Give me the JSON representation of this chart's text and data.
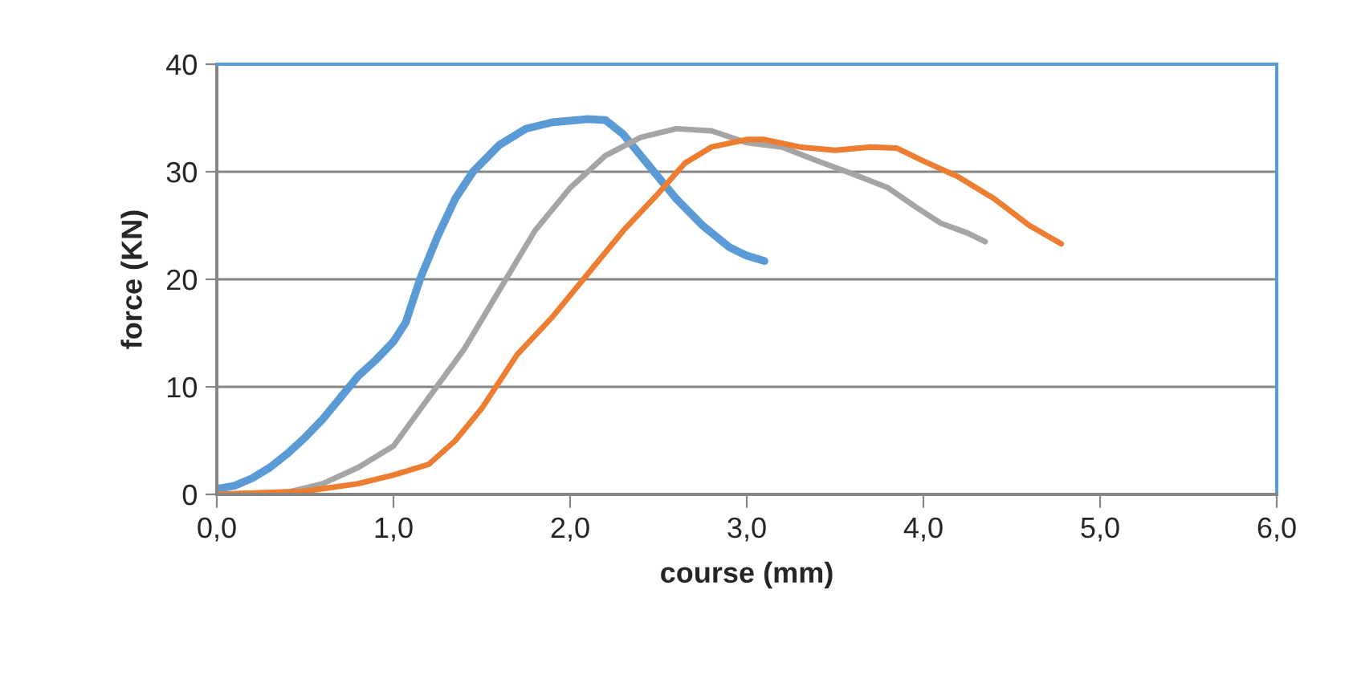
{
  "chart_data": {
    "type": "line",
    "xlabel": "course (mm)",
    "ylabel": "force (KN)",
    "xlim": [
      0,
      6
    ],
    "ylim": [
      0,
      40
    ],
    "xticks": [
      {
        "value": 0,
        "label": "0,0"
      },
      {
        "value": 1,
        "label": "1,0"
      },
      {
        "value": 2,
        "label": "2,0"
      },
      {
        "value": 3,
        "label": "3,0"
      },
      {
        "value": 4,
        "label": "4,0"
      },
      {
        "value": 5,
        "label": "5,0"
      },
      {
        "value": 6,
        "label": "6,0"
      }
    ],
    "yticks": [
      0,
      10,
      20,
      30,
      40
    ],
    "grid": "y",
    "marker": "none",
    "line_style": "solid",
    "series": [
      {
        "color": "#5b9bd5",
        "x": [
          0,
          0.1,
          0.2,
          0.3,
          0.4,
          0.5,
          0.6,
          0.7,
          0.8,
          0.9,
          1.0,
          1.07,
          1.15,
          1.25,
          1.35,
          1.45,
          1.6,
          1.75,
          1.9,
          2.1,
          2.2,
          2.3,
          2.45,
          2.6,
          2.75,
          2.9,
          3.0,
          3.1
        ],
        "values": [
          0.5,
          0.8,
          1.5,
          2.5,
          3.8,
          5.3,
          7,
          9,
          11,
          12.5,
          14.2,
          16,
          20,
          24,
          27.5,
          30,
          32.5,
          34,
          34.6,
          34.9,
          34.8,
          33.5,
          30.5,
          27.5,
          25,
          23,
          22.2,
          21.7
        ]
      },
      {
        "color": "#a5a5a5",
        "x": [
          0,
          0.4,
          0.6,
          0.8,
          1.0,
          1.2,
          1.4,
          1.6,
          1.8,
          2.0,
          2.2,
          2.4,
          2.6,
          2.8,
          3.0,
          3.2,
          3.4,
          3.6,
          3.8,
          3.95,
          4.1,
          4.25,
          4.35
        ],
        "values": [
          0,
          0.2,
          1,
          2.5,
          4.5,
          9,
          13.5,
          19,
          24.5,
          28.5,
          31.5,
          33.2,
          34,
          33.8,
          32.7,
          32.3,
          31,
          29.8,
          28.5,
          26.8,
          25.2,
          24.3,
          23.5
        ]
      },
      {
        "color": "#ed7d31",
        "x": [
          0,
          0.5,
          0.8,
          1.0,
          1.2,
          1.35,
          1.5,
          1.7,
          1.9,
          2.1,
          2.3,
          2.5,
          2.65,
          2.8,
          3.0,
          3.1,
          3.3,
          3.5,
          3.7,
          3.85,
          4.0,
          4.2,
          4.4,
          4.6,
          4.78
        ],
        "values": [
          0,
          0.3,
          1,
          1.8,
          2.8,
          5,
          8,
          13,
          16.5,
          20.5,
          24.5,
          28,
          30.8,
          32.3,
          33,
          33,
          32.3,
          32,
          32.3,
          32.2,
          31,
          29.5,
          27.5,
          25,
          23.3
        ]
      }
    ]
  }
}
